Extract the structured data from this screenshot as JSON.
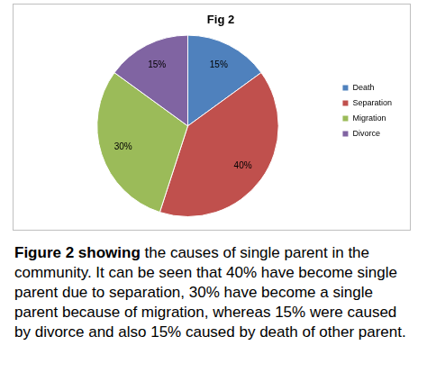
{
  "chart_data": {
    "type": "pie",
    "title": "Fig 2",
    "categories": [
      "Death",
      "Separation",
      "Migration",
      "Divorce"
    ],
    "values": [
      15,
      40,
      30,
      15
    ],
    "value_labels": [
      "15%",
      "40%",
      "30%",
      "15%"
    ],
    "colors": [
      "#4f81bd",
      "#c0504d",
      "#9bbb59",
      "#8064a2"
    ],
    "legend": "right",
    "data_labels": true
  },
  "caption": {
    "lead": "Figure 2 showing",
    "text": "the causes of single parent in the community. It can be seen that 40% have become single parent due to separation, 30% have become a single parent because of migration, whereas 15% were caused by divorce and also 15% caused by death of other parent."
  }
}
